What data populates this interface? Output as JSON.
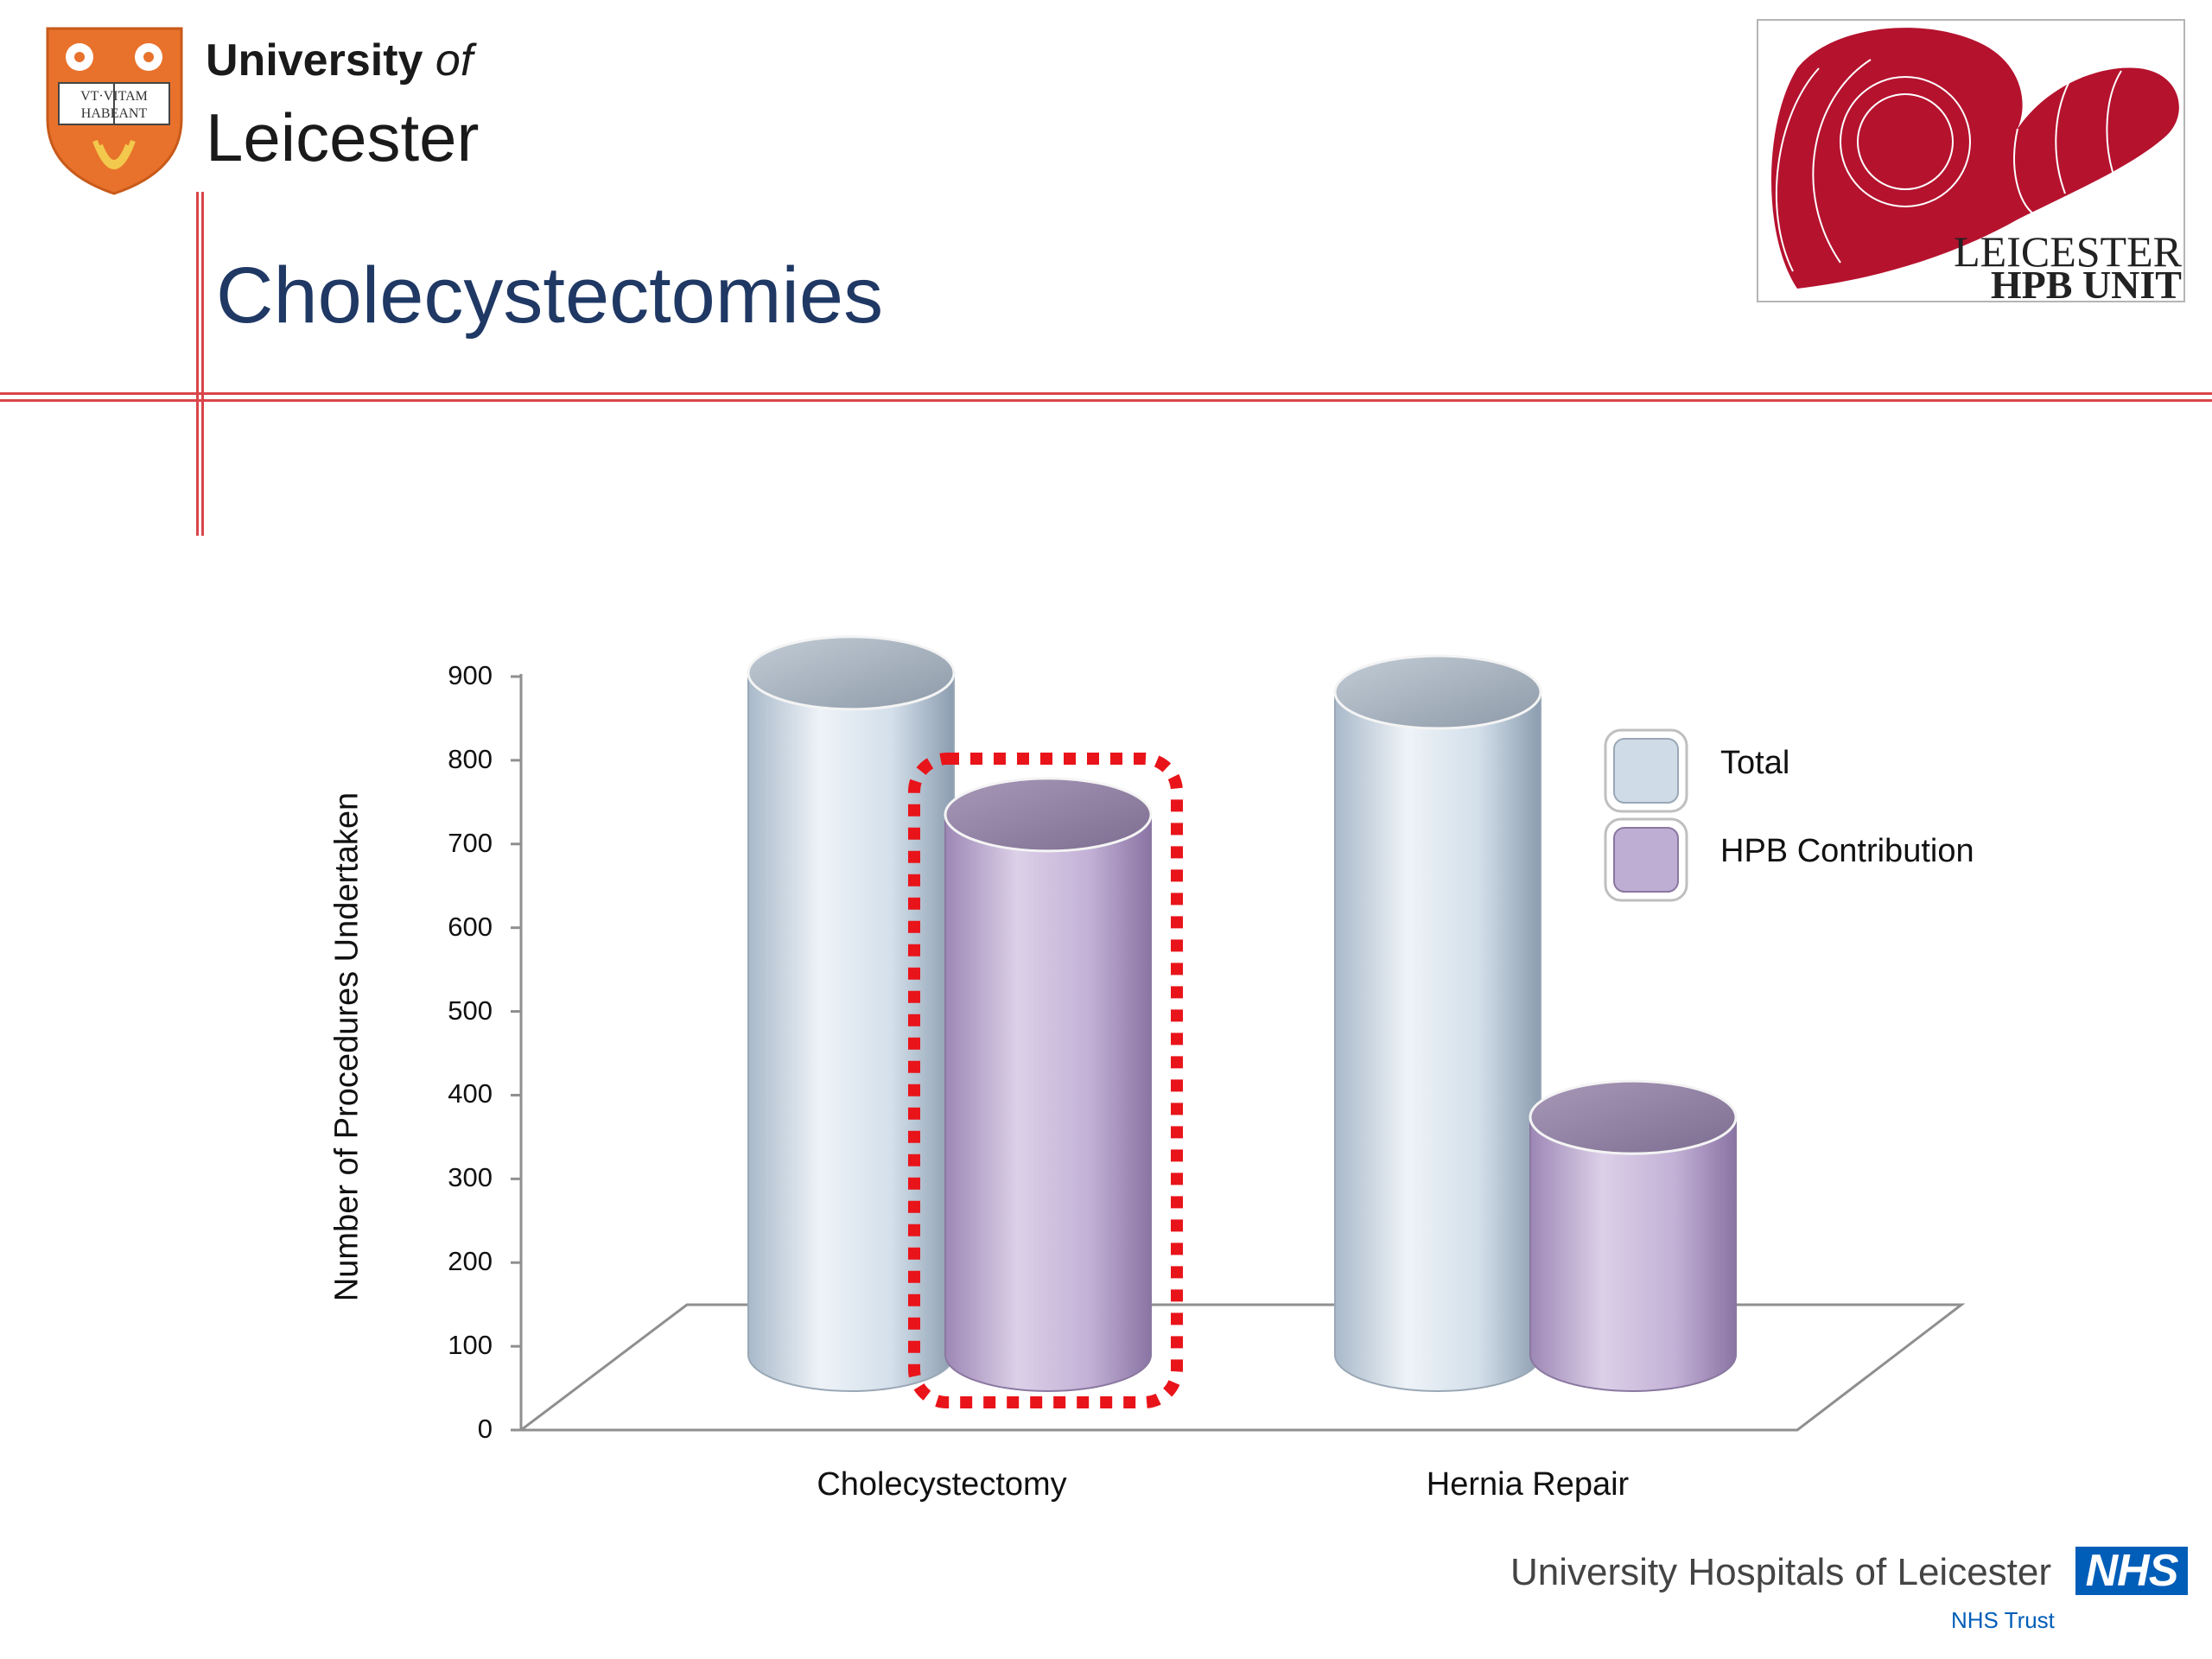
{
  "header": {
    "university_word": "University",
    "of_word": "of",
    "leicester_word": "Leicester",
    "crest_motto_line1": "VT·VITAM",
    "crest_motto_line2": "HABEANT",
    "hpb_logo_line1": "LEICESTER",
    "hpb_logo_line2": "HPB UNIT"
  },
  "slide": {
    "title": "Cholecystectomies"
  },
  "colors": {
    "rule_red": "#d9454a",
    "title_blue": "#1f3864",
    "total_series": "#c9d8e6",
    "hpb_series": "#b7a3c9",
    "highlight_red": "#e8141a",
    "hpb_logo_red": "#b5122e",
    "nhs_blue": "#005eb8"
  },
  "chart_data": {
    "type": "bar",
    "style": "3d-cylinder",
    "categories": [
      "Cholecystectomy",
      "Hernia Repair"
    ],
    "series": [
      {
        "name": "Total",
        "values": [
          890,
          865
        ]
      },
      {
        "name": "HPB Contribution",
        "values": [
          705,
          310
        ]
      }
    ],
    "xlabel": "",
    "ylabel": "Number of Procedures Undertaken",
    "ylim": [
      0,
      900
    ],
    "yticks": [
      0,
      100,
      200,
      300,
      400,
      500,
      600,
      700,
      800,
      900
    ],
    "ytick_labels": [
      "0",
      "100",
      "200",
      "300",
      "400",
      "500",
      "600",
      "700",
      "800",
      "900"
    ],
    "grid": false,
    "legend_position": "right",
    "highlight": {
      "series": "HPB Contribution",
      "category": "Cholecystectomy",
      "style": "red dotted rounded box"
    }
  },
  "footer": {
    "trust_name": "University Hospitals of Leicester",
    "nhs_logo_text": "NHS",
    "nhs_trust_text": "NHS Trust"
  }
}
